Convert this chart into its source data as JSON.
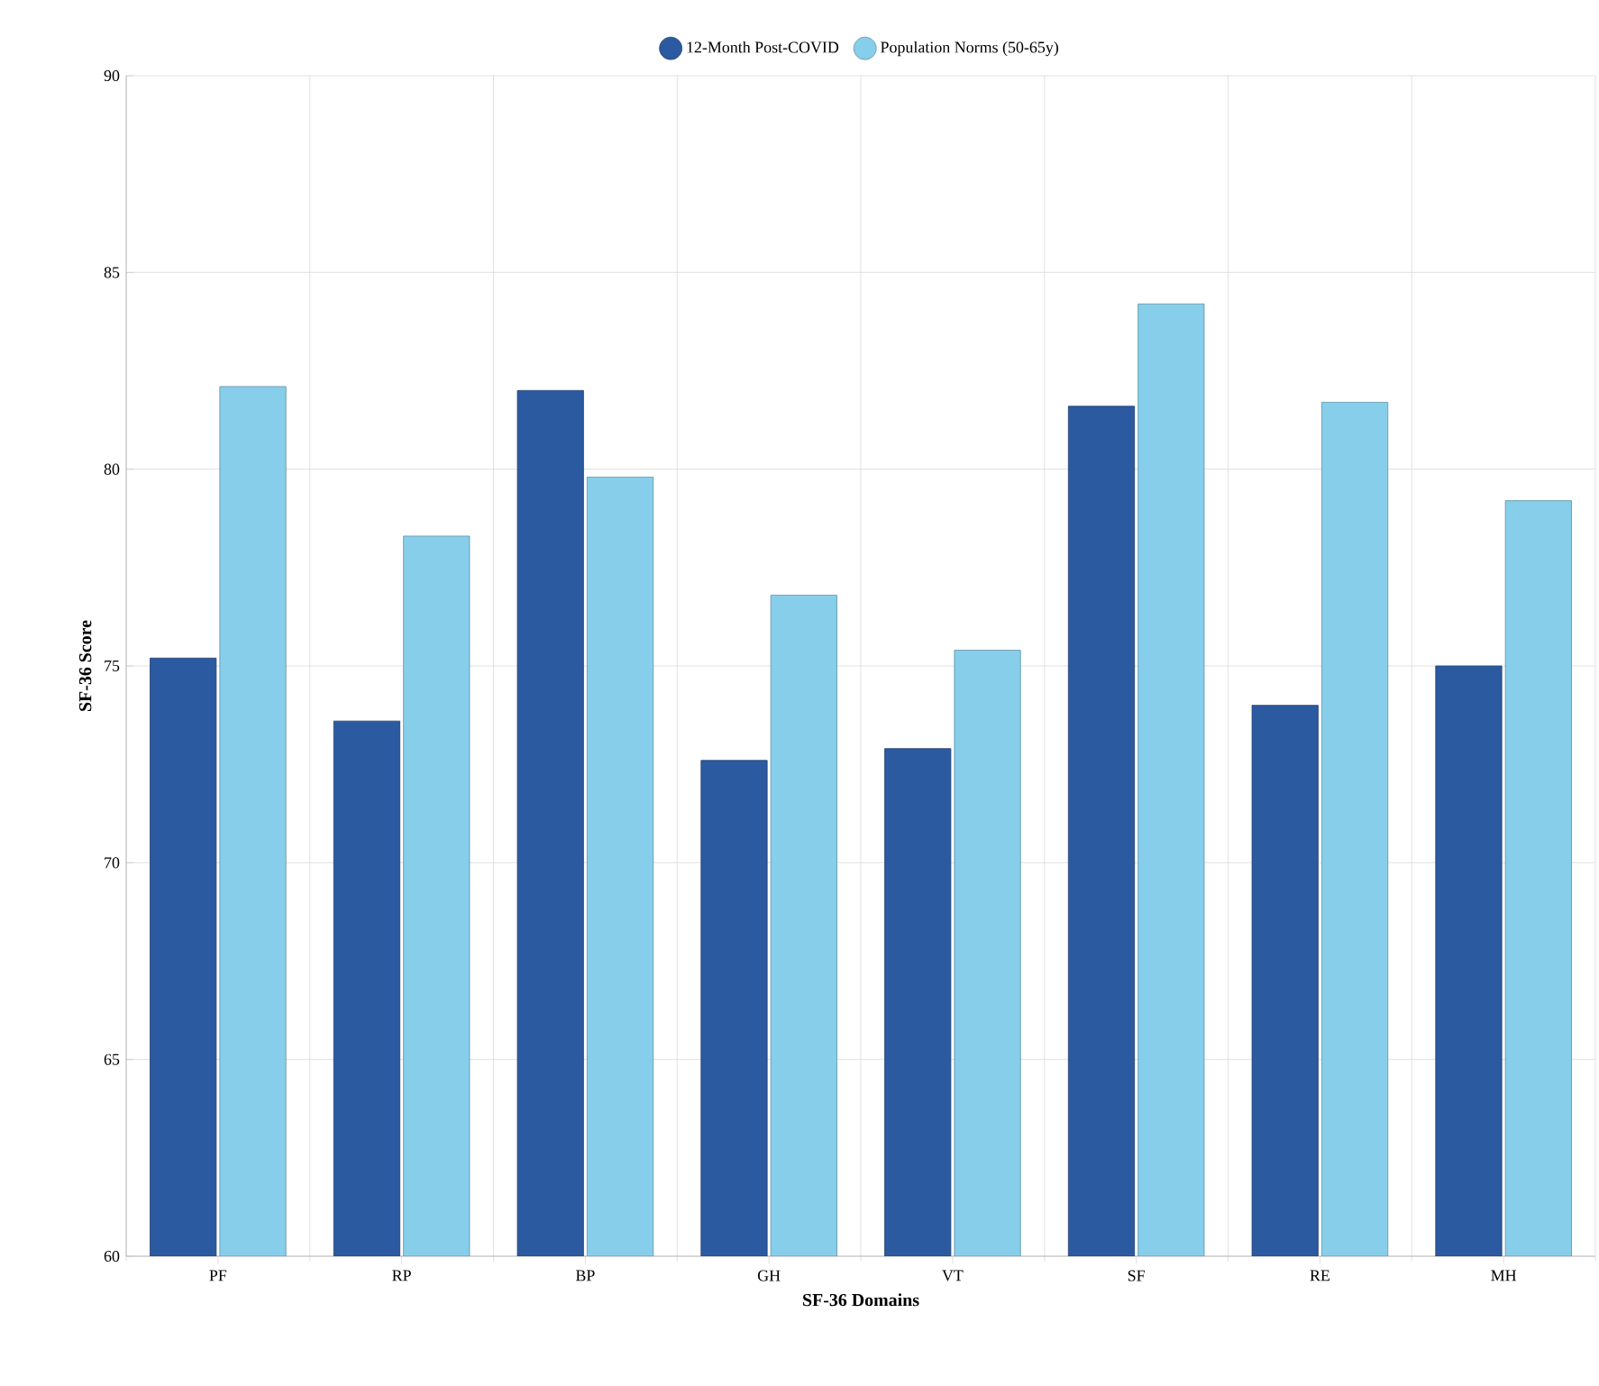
{
  "chart_data": {
    "type": "bar",
    "xlabel": "SF-36 Domains",
    "ylabel": "SF-36 Score",
    "categories": [
      "PF",
      "RP",
      "BP",
      "GH",
      "VT",
      "SF",
      "RE",
      "MH"
    ],
    "series": [
      {
        "name": "12-Month Post-COVID",
        "color": "#2c5aa0",
        "values": [
          75.2,
          73.6,
          82.0,
          72.6,
          72.9,
          81.6,
          74.0,
          75.0
        ]
      },
      {
        "name": "Population Norms (50-65y)",
        "color": "#87ceeb",
        "values": [
          82.1,
          78.3,
          79.8,
          76.8,
          75.4,
          84.2,
          81.7,
          79.2
        ]
      }
    ],
    "ylim": [
      60,
      90
    ],
    "yticks": [
      60,
      65,
      70,
      75,
      80,
      85,
      90
    ],
    "grid": true,
    "legend": "top"
  }
}
